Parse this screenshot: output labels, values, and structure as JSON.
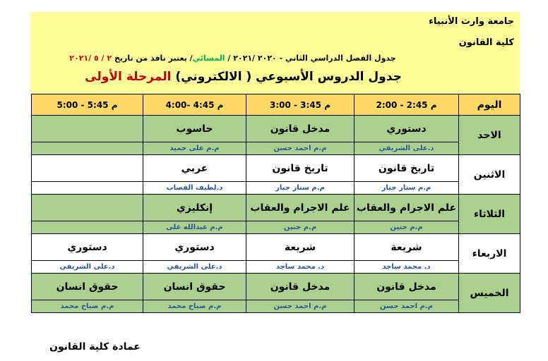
{
  "header": {
    "university": "جامعة وارث الأنبياء",
    "college": "كلية القانون",
    "subtitle_a": "جدول الفصل الدراسي الثاني - ٢٠٢٠ /٢٠٢١ / ",
    "subtitle_evening": "المسائي",
    "subtitle_b": "/ يعتبر نافذ من تاريخ ",
    "subtitle_date": "٢ / ٥ /٢٠٢١",
    "title_a": "جدول الدروس الأسبوعي ( الالكتروني) ",
    "title_stage": "المرحلة الأولى"
  },
  "table": {
    "headers": [
      "اليوم",
      "م 2:45 - 2:00",
      "م 3:45 - 3:00",
      "م 4:45 -4:00",
      "م 5:45 - 5:00"
    ],
    "rows": [
      {
        "day": "الاحد",
        "subjects": [
          "دستوري",
          "مدخل قانون",
          "حاسوب",
          ""
        ],
        "teachers": [
          "د.على الشريفي",
          "م.م احمد حسن",
          "م.م على حميد",
          ""
        ]
      },
      {
        "day": "الاثنين",
        "subjects": [
          "تاريخ قانون",
          "تاريخ قانون",
          "عربي",
          ""
        ],
        "teachers": [
          "م.م ستار جبار",
          "م.م ستار جبار",
          "د.لطيف القصاب",
          ""
        ]
      },
      {
        "day": "الثلاثاء",
        "subjects": [
          "علم الاجرام والعقاب",
          "علم الاجرام والعقاب",
          "إنكليزي",
          ""
        ],
        "teachers": [
          "م.م حنين",
          "م.م حنين",
          "م.م عبدالله على",
          ""
        ]
      },
      {
        "day": "الاربعاء",
        "subjects": [
          "شريعة",
          "شريعة",
          "دستوري",
          "دستوري"
        ],
        "teachers": [
          "د. محمد ساجد",
          "د. محمد ساجد",
          "د.على الشريفي",
          "د.على الشريفي"
        ]
      },
      {
        "day": "الخميس",
        "subjects": [
          "مدخل قانون",
          "مدخل قانون",
          "حقوق انسان",
          "حقوق انسان"
        ],
        "teachers": [
          "م.م احمد حسن",
          "م.م احمد حسن",
          "م.م صباح محمد",
          "م.م صباح محمد"
        ]
      }
    ]
  },
  "footer": "عمادة كلية القانون",
  "colors": {
    "header_bg": "#ffff99",
    "time_row": "#ffd966",
    "green_row": "#a9d08e",
    "teacher_text": "#2f5597",
    "date_red": "#e00000",
    "evening_green": "#00b050"
  }
}
